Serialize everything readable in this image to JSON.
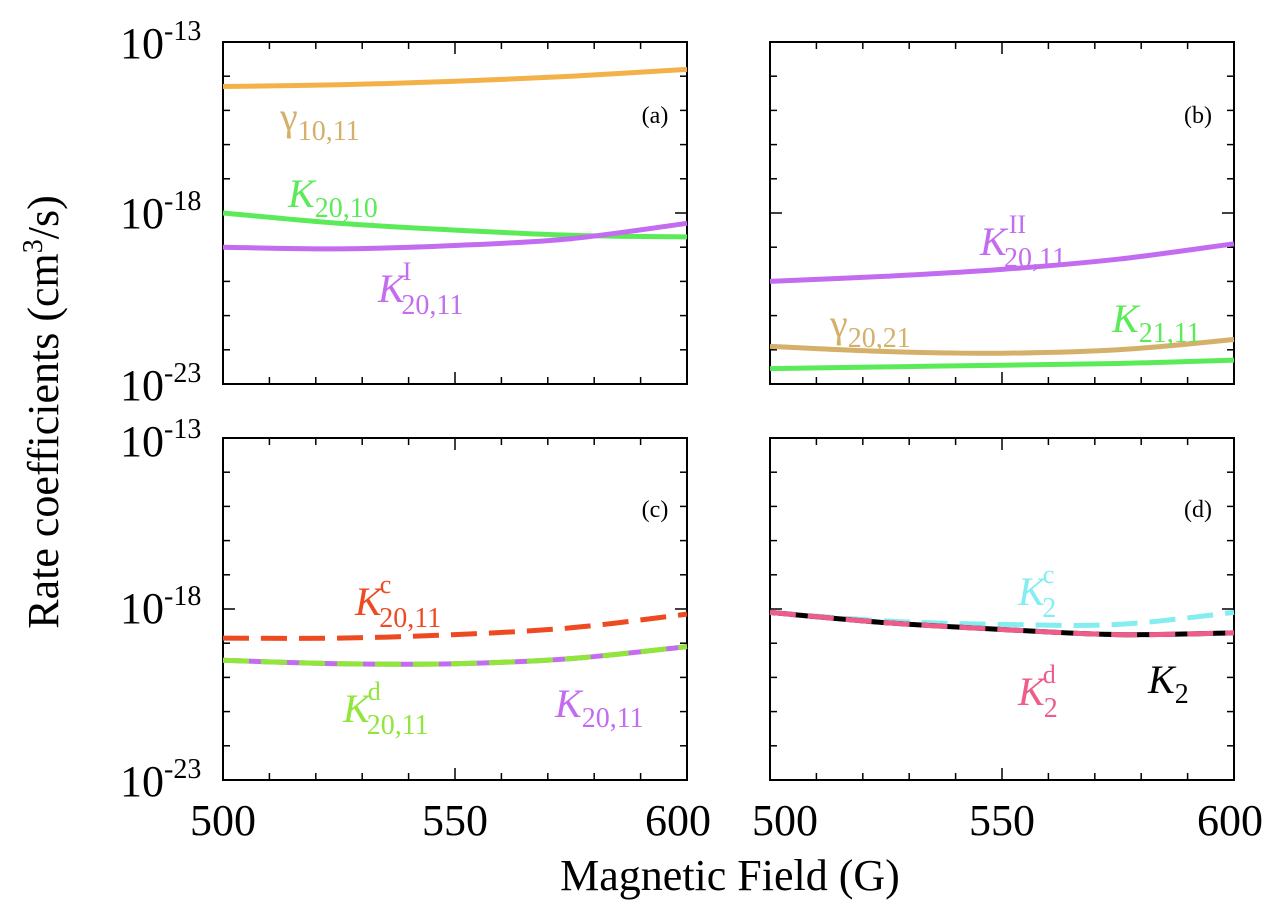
{
  "figure": {
    "ylabel_main": "Rate coefficients (cm",
    "ylabel_sup": "3",
    "ylabel_tail": "/s)",
    "xlabel": "Magnetic Field (G)"
  },
  "ytick_labels": {
    "top": {
      "base": "10",
      "exp": "-13"
    },
    "mid": {
      "base": "10",
      "exp": "-18"
    },
    "bottom": {
      "base": "10",
      "exp": "-23"
    }
  },
  "xtick_labels": [
    "500",
    "550",
    "600"
  ],
  "colors": {
    "orange": "#f4b14a",
    "tan": "#d4b06a",
    "green": "#5bea58",
    "purple": "#c36cf0",
    "red_orange": "#ee4a21",
    "yellow_green": "#90e63a",
    "cyan": "#83edf1",
    "pink": "#ee5c89",
    "black": "#000000"
  },
  "chart_data": [
    {
      "type": "line",
      "panel": "a",
      "label": "(a)",
      "xlim": [
        500,
        600
      ],
      "ylim_log10": [
        -23,
        -13
      ],
      "yscale": "log",
      "series": [
        {
          "name": "γ_{10,11}",
          "color": "#f4b14a",
          "dash": false,
          "x": [
            500,
            525,
            550,
            575,
            600
          ],
          "log10_y": [
            -14.3,
            -14.25,
            -14.15,
            -14.0,
            -13.8
          ],
          "label_parts": {
            "main": "γ",
            "sub": "10,11",
            "sup": ""
          }
        },
        {
          "name": "K_{20,10}",
          "color": "#5bea58",
          "dash": false,
          "x": [
            500,
            525,
            550,
            575,
            600
          ],
          "log10_y": [
            -18.0,
            -18.3,
            -18.5,
            -18.65,
            -18.7
          ],
          "label_parts": {
            "main": "K",
            "sub": "20,10",
            "sup": ""
          }
        },
        {
          "name": "K^I_{20,11}",
          "color": "#c36cf0",
          "dash": false,
          "x": [
            500,
            525,
            550,
            575,
            600
          ],
          "log10_y": [
            -19.0,
            -19.05,
            -18.95,
            -18.75,
            -18.3
          ],
          "label_parts": {
            "main": "K",
            "sub": "20,11",
            "sup": "I"
          }
        }
      ]
    },
    {
      "type": "line",
      "panel": "b",
      "label": "(b)",
      "xlim": [
        500,
        600
      ],
      "ylim_log10": [
        -23,
        -13
      ],
      "yscale": "log",
      "series": [
        {
          "name": "K^II_{20,11}",
          "color": "#c36cf0",
          "dash": false,
          "x": [
            500,
            525,
            550,
            575,
            600
          ],
          "log10_y": [
            -20.0,
            -19.85,
            -19.65,
            -19.35,
            -18.9
          ],
          "label_parts": {
            "main": "K",
            "sub": "20,11",
            "sup": "II"
          }
        },
        {
          "name": "γ_{20,21}",
          "color": "#d4b06a",
          "dash": false,
          "x": [
            500,
            525,
            550,
            575,
            600
          ],
          "log10_y": [
            -21.9,
            -22.05,
            -22.1,
            -22.0,
            -21.7
          ],
          "label_parts": {
            "main": "γ",
            "sub": "20,21",
            "sup": ""
          }
        },
        {
          "name": "K_{21,11}",
          "color": "#5bea58",
          "dash": false,
          "x": [
            500,
            525,
            550,
            575,
            600
          ],
          "log10_y": [
            -22.55,
            -22.5,
            -22.45,
            -22.4,
            -22.3
          ],
          "label_parts": {
            "main": "K",
            "sub": "21,11",
            "sup": ""
          }
        }
      ]
    },
    {
      "type": "line",
      "panel": "c",
      "label": "(c)",
      "xlim": [
        500,
        600
      ],
      "ylim_log10": [
        -23,
        -13
      ],
      "yscale": "log",
      "series": [
        {
          "name": "K^c_{20,11}",
          "color": "#ee4a21",
          "dash": true,
          "x": [
            500,
            525,
            550,
            575,
            600
          ],
          "log10_y": [
            -18.85,
            -18.85,
            -18.75,
            -18.55,
            -18.15
          ],
          "label_parts": {
            "main": "K",
            "sub": "20,11",
            "sup": "c"
          }
        },
        {
          "name": "K_{20,11}",
          "color": "#c36cf0",
          "dash": false,
          "x": [
            500,
            525,
            550,
            575,
            600
          ],
          "log10_y": [
            -19.5,
            -19.6,
            -19.6,
            -19.45,
            -19.1
          ],
          "label_parts": {
            "main": "K",
            "sub": "20,11",
            "sup": ""
          }
        },
        {
          "name": "K^d_{20,11}",
          "color": "#90e63a",
          "dash": true,
          "x": [
            500,
            525,
            550,
            575,
            600
          ],
          "log10_y": [
            -19.5,
            -19.6,
            -19.6,
            -19.45,
            -19.1
          ],
          "label_parts": {
            "main": "K",
            "sub": "20,11",
            "sup": "d"
          }
        }
      ]
    },
    {
      "type": "line",
      "panel": "d",
      "label": "(d)",
      "xlim": [
        500,
        600
      ],
      "ylim_log10": [
        -23,
        -13
      ],
      "yscale": "log",
      "series": [
        {
          "name": "K^c_2",
          "color": "#83edf1",
          "dash": true,
          "x": [
            500,
            525,
            550,
            575,
            600
          ],
          "log10_y": [
            -18.1,
            -18.35,
            -18.45,
            -18.45,
            -18.1
          ],
          "label_parts": {
            "main": "K",
            "sub": "2",
            "sup": "c"
          }
        },
        {
          "name": "K_2",
          "color": "#000000",
          "dash": false,
          "x": [
            500,
            525,
            550,
            575,
            600
          ],
          "log10_y": [
            -18.1,
            -18.4,
            -18.6,
            -18.75,
            -18.7
          ],
          "label_parts": {
            "main": "K",
            "sub": "2",
            "sup": ""
          }
        },
        {
          "name": "K^d_2",
          "color": "#ee5c89",
          "dash": true,
          "x": [
            500,
            525,
            550,
            575,
            600
          ],
          "log10_y": [
            -18.1,
            -18.4,
            -18.6,
            -18.75,
            -18.7
          ],
          "label_parts": {
            "main": "K",
            "sub": "2",
            "sup": "d"
          }
        }
      ]
    }
  ]
}
